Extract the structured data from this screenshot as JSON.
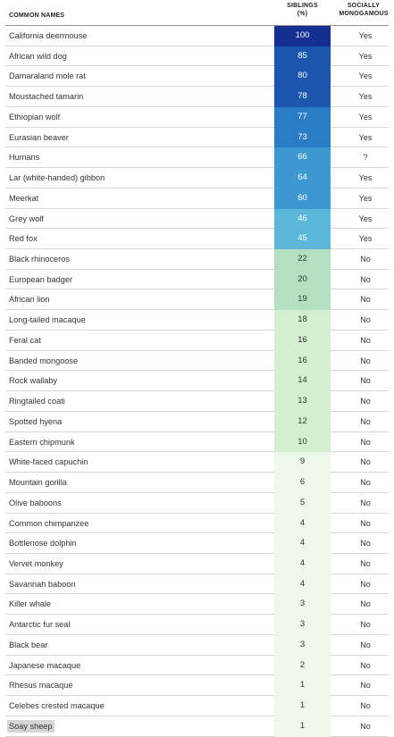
{
  "headers": {
    "names": "COMMON NAMES",
    "siblings_line1": "SIBLINGS",
    "siblings_line2": "(%)",
    "mono_line1": "SOCIALLY",
    "mono_line2": "MONOGAMOUS"
  },
  "colors": {
    "scale": [
      "#eef8e9",
      "#d4efcf",
      "#b2e0c0",
      "#5cb6d8",
      "#3d98d1",
      "#2a7cc6",
      "#1b55ae",
      "#142e91"
    ],
    "highlight": "#d5d5d5"
  },
  "chart_data": {
    "type": "table",
    "columns": [
      "COMMON NAMES",
      "SIBLINGS (%)",
      "SOCIALLY MONOGAMOUS"
    ],
    "rows": [
      {
        "name": "California deermouse",
        "siblings": 100,
        "mono": "Yes"
      },
      {
        "name": "African wild dog",
        "siblings": 85,
        "mono": "Yes"
      },
      {
        "name": "Damaraland mole rat",
        "siblings": 80,
        "mono": "Yes"
      },
      {
        "name": "Moustached tamarin",
        "siblings": 78,
        "mono": "Yes"
      },
      {
        "name": "Ethiopian wolf",
        "siblings": 77,
        "mono": "Yes"
      },
      {
        "name": "Eurasian beaver",
        "siblings": 73,
        "mono": "Yes"
      },
      {
        "name": "Humans",
        "siblings": 66,
        "mono": "?"
      },
      {
        "name": "Lar (white-handed) gibbon",
        "siblings": 64,
        "mono": "Yes"
      },
      {
        "name": "Meerkat",
        "siblings": 60,
        "mono": "Yes"
      },
      {
        "name": "Grey wolf",
        "siblings": 46,
        "mono": "Yes"
      },
      {
        "name": "Red fox",
        "siblings": 45,
        "mono": "Yes"
      },
      {
        "name": "Black rhinoceros",
        "siblings": 22,
        "mono": "No"
      },
      {
        "name": "European badger",
        "siblings": 20,
        "mono": "No"
      },
      {
        "name": "African lion",
        "siblings": 19,
        "mono": "No"
      },
      {
        "name": "Long-tailed macaque",
        "siblings": 18,
        "mono": "No"
      },
      {
        "name": "Feral cat",
        "siblings": 16,
        "mono": "No"
      },
      {
        "name": "Banded mongoose",
        "siblings": 16,
        "mono": "No"
      },
      {
        "name": "Rock wallaby",
        "siblings": 14,
        "mono": "No"
      },
      {
        "name": "Ringtailed coati",
        "siblings": 13,
        "mono": "No"
      },
      {
        "name": "Spotted hyena",
        "siblings": 12,
        "mono": "No"
      },
      {
        "name": "Eastern chipmunk",
        "siblings": 10,
        "mono": "No"
      },
      {
        "name": "White-faced capuchin",
        "siblings": 9,
        "mono": "No"
      },
      {
        "name": "Mountain gorilla",
        "siblings": 6,
        "mono": "No"
      },
      {
        "name": "Olive baboons",
        "siblings": 5,
        "mono": "No"
      },
      {
        "name": "Common chimpanzee",
        "siblings": 4,
        "mono": "No"
      },
      {
        "name": "Bottlenose dolphin",
        "siblings": 4,
        "mono": "No"
      },
      {
        "name": "Vervet monkey",
        "siblings": 4,
        "mono": "No"
      },
      {
        "name": "Savannah baboon",
        "siblings": 4,
        "mono": "No"
      },
      {
        "name": "Killer whale",
        "siblings": 3,
        "mono": "No"
      },
      {
        "name": "Antarctic fur seal",
        "siblings": 3,
        "mono": "No"
      },
      {
        "name": "Black bear",
        "siblings": 3,
        "mono": "No"
      },
      {
        "name": "Japanese macaque",
        "siblings": 2,
        "mono": "No"
      },
      {
        "name": "Rhesus macaque",
        "siblings": 1,
        "mono": "No"
      },
      {
        "name": "Celebes crested macaque",
        "siblings": 1,
        "mono": "No"
      },
      {
        "name": "Soay sheep",
        "siblings": 1,
        "mono": "No",
        "highlighted": true
      }
    ]
  }
}
